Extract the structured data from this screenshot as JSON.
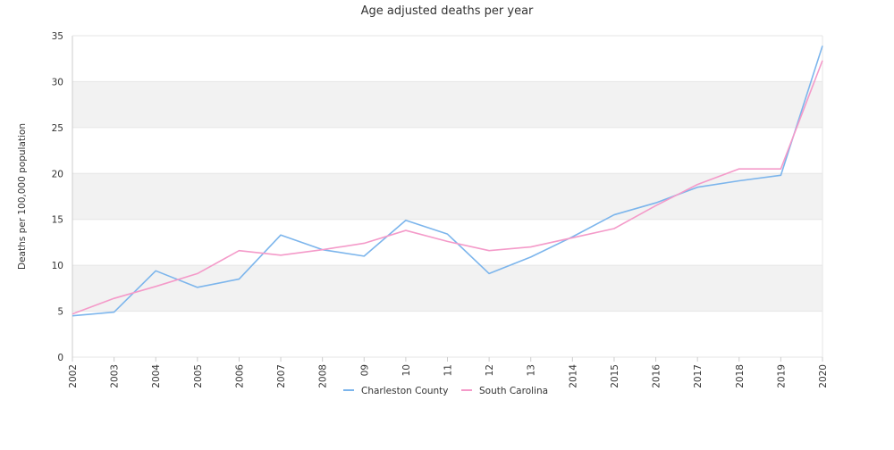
{
  "chart_data": {
    "type": "line",
    "title": "Age adjusted deaths per year",
    "xlabel": "",
    "ylabel": "Deaths per 100,000 population",
    "x": [
      "2002",
      "2003",
      "2004",
      "2005",
      "2006",
      "2007",
      "2008",
      "09",
      "10",
      "11",
      "12",
      "13",
      "2014",
      "2015",
      "2016",
      "2017",
      "2018",
      "2019",
      "2020"
    ],
    "ylim": [
      0,
      35
    ],
    "yticks": [
      0,
      5,
      10,
      15,
      20,
      25,
      30,
      35
    ],
    "grid": true,
    "legend_position": "bottom",
    "series": [
      {
        "name": "Charleston County",
        "color": "#7cb5ec",
        "values": [
          4.5,
          4.9,
          9.4,
          7.6,
          8.5,
          13.3,
          11.7,
          11.0,
          14.9,
          13.4,
          9.1,
          10.9,
          13.1,
          15.5,
          16.8,
          18.5,
          19.2,
          19.8,
          33.9
        ]
      },
      {
        "name": "South Carolina",
        "color": "#f49ac9",
        "values": [
          4.7,
          6.4,
          7.7,
          9.1,
          11.6,
          11.1,
          11.7,
          12.4,
          13.8,
          12.6,
          11.6,
          12.0,
          13.0,
          14.0,
          16.5,
          18.8,
          20.5,
          20.5,
          32.3
        ]
      }
    ]
  },
  "colors": {
    "band": "#f2f2f2",
    "grid": "#e6e6e6",
    "axis": "#cccccc",
    "text": "#333333"
  }
}
